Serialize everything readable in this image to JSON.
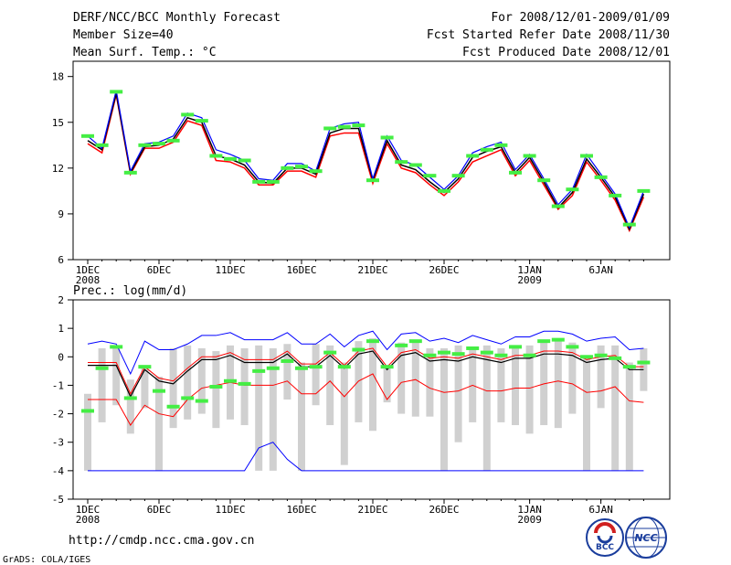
{
  "header": {
    "title": "DERF/NCC/BCC Monthly Forecast",
    "member_size": "Member Size=40",
    "variable": "Mean Surf. Temp.: °C",
    "period": "For 2008/12/01-2009/01/09",
    "start": "Fcst Started Refer Date 2008/11/30",
    "produced": "Fcst Produced Date 2008/12/01"
  },
  "footer": {
    "url": "http://cmdp.ncc.cma.gov.cn",
    "grads": "GrADS: COLA/IGES",
    "logo_bcc": "BCC",
    "logo_ncc": "NCC"
  },
  "colors": {
    "max": "#0000ff",
    "min": "#ff0000",
    "mean": "#000000",
    "obs": "#44ee44",
    "box": "#d0d0d0",
    "frame": "#000000"
  },
  "x_ticks": [
    {
      "day": 1,
      "label": "1DEC",
      "sub": "2008"
    },
    {
      "day": 6,
      "label": "6DEC",
      "sub": ""
    },
    {
      "day": 11,
      "label": "11DEC",
      "sub": ""
    },
    {
      "day": 16,
      "label": "16DEC",
      "sub": ""
    },
    {
      "day": 21,
      "label": "21DEC",
      "sub": ""
    },
    {
      "day": 26,
      "label": "26DEC",
      "sub": ""
    },
    {
      "day": 32,
      "label": "1JAN",
      "sub": "2009"
    },
    {
      "day": 37,
      "label": "6JAN",
      "sub": ""
    }
  ],
  "chart_data": [
    {
      "type": "line",
      "title": "Mean Surf. Temp.: °C",
      "ylim": [
        6,
        19
      ],
      "yticks": [
        6,
        9,
        12,
        15,
        18
      ],
      "x": [
        1,
        2,
        3,
        4,
        5,
        6,
        7,
        8,
        9,
        10,
        11,
        12,
        13,
        14,
        15,
        16,
        17,
        18,
        19,
        20,
        21,
        22,
        23,
        24,
        25,
        26,
        27,
        28,
        29,
        30,
        31,
        32,
        33,
        34,
        35,
        36,
        37,
        38,
        39,
        40
      ],
      "series": [
        {
          "name": "max",
          "values": [
            14.1,
            13.3,
            17.1,
            11.8,
            13.6,
            13.7,
            14.1,
            15.6,
            15.3,
            13.2,
            12.9,
            12.5,
            11.3,
            11.2,
            12.3,
            12.3,
            11.8,
            14.6,
            14.9,
            15.0,
            11.3,
            14.1,
            12.5,
            12.2,
            11.4,
            10.6,
            11.5,
            13.0,
            13.4,
            13.7,
            11.9,
            12.9,
            11.3,
            9.6,
            10.6,
            12.9,
            11.6,
            10.3,
            8.1,
            10.5
          ]
        },
        {
          "name": "mean",
          "values": [
            13.8,
            13.2,
            16.9,
            11.7,
            13.4,
            13.5,
            13.9,
            15.3,
            15.0,
            12.8,
            12.6,
            12.2,
            11.1,
            11.0,
            12.0,
            12.0,
            11.6,
            14.3,
            14.6,
            14.6,
            11.2,
            13.8,
            12.2,
            11.9,
            11.1,
            10.4,
            11.3,
            12.7,
            13.1,
            13.4,
            11.7,
            12.7,
            11.1,
            9.4,
            10.4,
            12.6,
            11.4,
            10.1,
            8.0,
            10.3
          ]
        },
        {
          "name": "min",
          "values": [
            13.6,
            13.0,
            16.8,
            11.6,
            13.3,
            13.3,
            13.7,
            15.1,
            14.8,
            12.5,
            12.4,
            12.0,
            10.9,
            10.9,
            11.8,
            11.8,
            11.4,
            14.1,
            14.3,
            14.3,
            11.0,
            13.6,
            12.0,
            11.7,
            10.9,
            10.2,
            11.1,
            12.4,
            12.8,
            13.2,
            11.5,
            12.5,
            10.9,
            9.3,
            10.2,
            12.4,
            11.2,
            9.9,
            7.9,
            10.1
          ]
        },
        {
          "name": "observed",
          "values": [
            14.1,
            13.5,
            17.0,
            11.7,
            13.5,
            13.6,
            13.8,
            15.5,
            15.1,
            12.8,
            12.6,
            12.5,
            11.1,
            11.1,
            12.0,
            12.1,
            11.8,
            14.6,
            14.7,
            14.8,
            11.2,
            14.0,
            12.4,
            12.2,
            11.5,
            10.5,
            11.5,
            12.8,
            13.2,
            13.5,
            11.7,
            12.8,
            11.2,
            9.5,
            10.6,
            12.8,
            11.4,
            10.2,
            8.3,
            10.5
          ]
        }
      ]
    },
    {
      "type": "line",
      "title": "Prec.: log(mm/d)",
      "ylim": [
        -5,
        2
      ],
      "yticks": [
        -5,
        -4,
        -3,
        -2,
        -1,
        0,
        1,
        2
      ],
      "x": [
        1,
        2,
        3,
        4,
        5,
        6,
        7,
        8,
        9,
        10,
        11,
        12,
        13,
        14,
        15,
        16,
        17,
        18,
        19,
        20,
        21,
        22,
        23,
        24,
        25,
        26,
        27,
        28,
        29,
        30,
        31,
        32,
        33,
        34,
        35,
        36,
        37,
        38,
        39,
        40
      ],
      "series": [
        {
          "name": "max",
          "values": [
            0.45,
            0.55,
            0.45,
            -0.6,
            0.55,
            0.25,
            0.25,
            0.45,
            0.75,
            0.75,
            0.85,
            0.6,
            0.6,
            0.6,
            0.85,
            0.45,
            0.45,
            0.8,
            0.35,
            0.75,
            0.9,
            0.25,
            0.8,
            0.85,
            0.55,
            0.65,
            0.5,
            0.75,
            0.6,
            0.45,
            0.7,
            0.7,
            0.9,
            0.9,
            0.8,
            0.55,
            0.65,
            0.7,
            0.25,
            0.3
          ]
        },
        {
          "name": "mean_upper",
          "values": [
            -0.2,
            -0.2,
            -0.2,
            -1.3,
            -0.35,
            -0.75,
            -0.85,
            -0.4,
            0.0,
            0.0,
            0.15,
            -0.1,
            -0.1,
            -0.1,
            0.2,
            -0.25,
            -0.25,
            0.15,
            -0.3,
            0.2,
            0.3,
            -0.35,
            0.15,
            0.25,
            -0.05,
            0.0,
            -0.05,
            0.1,
            0.0,
            -0.1,
            0.05,
            0.05,
            0.2,
            0.2,
            0.15,
            -0.1,
            0.0,
            0.05,
            -0.35,
            -0.35
          ]
        },
        {
          "name": "mean_lower",
          "values": [
            -0.3,
            -0.3,
            -0.3,
            -1.4,
            -0.45,
            -0.85,
            -0.95,
            -0.5,
            -0.1,
            -0.1,
            0.05,
            -0.2,
            -0.2,
            -0.2,
            0.1,
            -0.35,
            -0.35,
            0.05,
            -0.4,
            0.1,
            0.2,
            -0.45,
            0.05,
            0.15,
            -0.15,
            -0.1,
            -0.15,
            0.0,
            -0.1,
            -0.2,
            -0.05,
            -0.05,
            0.1,
            0.1,
            0.05,
            -0.2,
            -0.1,
            -0.05,
            -0.45,
            -0.45
          ]
        },
        {
          "name": "min",
          "values": [
            -1.5,
            -1.5,
            -1.5,
            -2.4,
            -1.7,
            -2.0,
            -2.1,
            -1.5,
            -1.1,
            -1.0,
            -0.9,
            -1.0,
            -1.0,
            -1.0,
            -0.85,
            -1.3,
            -1.3,
            -0.85,
            -1.4,
            -0.85,
            -0.6,
            -1.5,
            -0.9,
            -0.8,
            -1.1,
            -1.25,
            -1.2,
            -1.0,
            -1.2,
            -1.2,
            -1.1,
            -1.1,
            -0.95,
            -0.85,
            -0.95,
            -1.25,
            -1.2,
            -1.05,
            -1.55,
            -1.6
          ]
        },
        {
          "name": "min_extreme",
          "values": [
            -4,
            -4,
            -4,
            -4,
            -4,
            -4,
            -4,
            -4,
            -4,
            -4,
            -4,
            -4,
            -3.2,
            -3.0,
            -3.6,
            -4,
            -4,
            -4,
            -4,
            -4,
            -4,
            -4,
            -4,
            -4,
            -4,
            -4,
            -4,
            -4,
            -4,
            -4,
            -4,
            -4,
            -4,
            -4,
            -4,
            -4,
            -4,
            -4,
            -4,
            -4
          ]
        },
        {
          "name": "observed",
          "values": [
            -1.9,
            -0.4,
            0.35,
            -1.45,
            -0.35,
            -1.2,
            -1.75,
            -1.45,
            -1.55,
            -1.05,
            -0.85,
            -0.95,
            -0.5,
            -0.4,
            -0.15,
            -0.4,
            -0.35,
            0.15,
            -0.35,
            0.25,
            0.55,
            -0.35,
            0.4,
            0.55,
            0.05,
            0.15,
            0.1,
            0.3,
            0.15,
            0.05,
            0.35,
            0.05,
            0.55,
            0.6,
            0.35,
            0.0,
            0.05,
            -0.05,
            -0.35,
            -0.2
          ]
        },
        {
          "name": "box_upper",
          "values": [
            -1.3,
            0.3,
            0.4,
            -0.8,
            -0.3,
            -0.7,
            0.3,
            0.4,
            0.3,
            0.2,
            0.4,
            0.3,
            0.4,
            0.3,
            0.45,
            -0.2,
            0.45,
            0.4,
            -0.2,
            0.55,
            0.65,
            -0.3,
            0.5,
            0.55,
            0.3,
            0.3,
            0.4,
            0.35,
            0.4,
            0.3,
            0.35,
            0.4,
            0.55,
            0.55,
            0.5,
            0.0,
            0.4,
            0.4,
            -0.2,
            0.3
          ]
        },
        {
          "name": "box_lower",
          "values": [
            -4,
            -2.3,
            -1.7,
            -2.7,
            -1.8,
            -4,
            -2.5,
            -2.2,
            -2.0,
            -2.5,
            -2.2,
            -2.4,
            -4,
            -4,
            -1.5,
            -4,
            -1.7,
            -2.4,
            -3.8,
            -2.3,
            -2.6,
            -1.6,
            -2.0,
            -2.1,
            -2.1,
            -4,
            -3.0,
            -2.3,
            -4,
            -2.3,
            -2.4,
            -2.7,
            -2.4,
            -2.5,
            -2.0,
            -4,
            -1.8,
            -4,
            -4,
            -1.2
          ]
        }
      ]
    }
  ],
  "panel2_label": "Prec.: log(mm/d)"
}
